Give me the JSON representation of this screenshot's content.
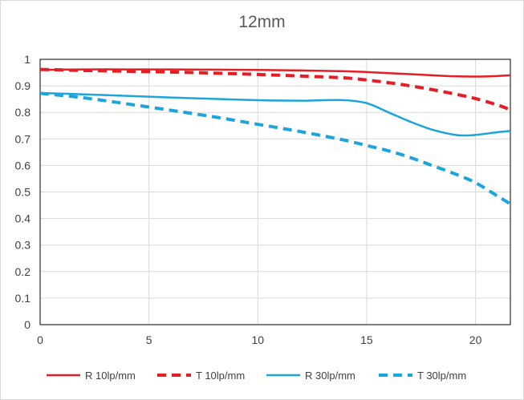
{
  "chart_data": {
    "type": "line",
    "title": "12mm",
    "xlabel": "",
    "ylabel": "",
    "xlim": [
      0,
      21.6
    ],
    "ylim": [
      0,
      1
    ],
    "x_ticks": [
      0,
      5,
      10,
      15,
      20
    ],
    "y_ticks": [
      0,
      0.1,
      0.2,
      0.3,
      0.4,
      0.5,
      0.6,
      0.7,
      0.8,
      0.9,
      1
    ],
    "y_tick_labels": [
      "0",
      "0.1",
      "0.2",
      "0.3",
      "0.4",
      "0.5",
      "0.6",
      "0.7",
      "0.8",
      "0.9",
      "1"
    ],
    "grid": true,
    "legend_position": "bottom",
    "series": [
      {
        "name": "R 10lp/mm",
        "color": "#e31e24",
        "dashed": false,
        "x": [
          0,
          2,
          4,
          6,
          8,
          10,
          12,
          14,
          15,
          16,
          17,
          18,
          19,
          20,
          21,
          21.6
        ],
        "y": [
          0.96,
          0.962,
          0.962,
          0.962,
          0.961,
          0.96,
          0.958,
          0.955,
          0.952,
          0.948,
          0.944,
          0.94,
          0.936,
          0.935,
          0.937,
          0.94
        ]
      },
      {
        "name": "T 10lp/mm",
        "color": "#e31e24",
        "dashed": true,
        "x": [
          0,
          2,
          4,
          6,
          8,
          10,
          12,
          14,
          15,
          16,
          17,
          18,
          19,
          20,
          21,
          21.6
        ],
        "y": [
          0.962,
          0.958,
          0.955,
          0.952,
          0.948,
          0.943,
          0.937,
          0.93,
          0.922,
          0.912,
          0.9,
          0.886,
          0.87,
          0.852,
          0.828,
          0.81
        ]
      },
      {
        "name": "R 30lp/mm",
        "color": "#1ba5dc",
        "dashed": false,
        "x": [
          0,
          2,
          4,
          6,
          8,
          10,
          12,
          13,
          14,
          15,
          16,
          17,
          18,
          19,
          19.5,
          20,
          21,
          21.6
        ],
        "y": [
          0.873,
          0.868,
          0.862,
          0.856,
          0.851,
          0.846,
          0.844,
          0.846,
          0.846,
          0.835,
          0.8,
          0.765,
          0.735,
          0.716,
          0.713,
          0.715,
          0.725,
          0.73
        ]
      },
      {
        "name": "T 30lp/mm",
        "color": "#1ba5dc",
        "dashed": true,
        "x": [
          0,
          2,
          4,
          6,
          8,
          10,
          12,
          14,
          15,
          16,
          17,
          18,
          19,
          20,
          21,
          21.6
        ],
        "y": [
          0.872,
          0.855,
          0.832,
          0.808,
          0.783,
          0.755,
          0.727,
          0.695,
          0.675,
          0.655,
          0.63,
          0.6,
          0.57,
          0.535,
          0.485,
          0.455
        ]
      }
    ]
  }
}
